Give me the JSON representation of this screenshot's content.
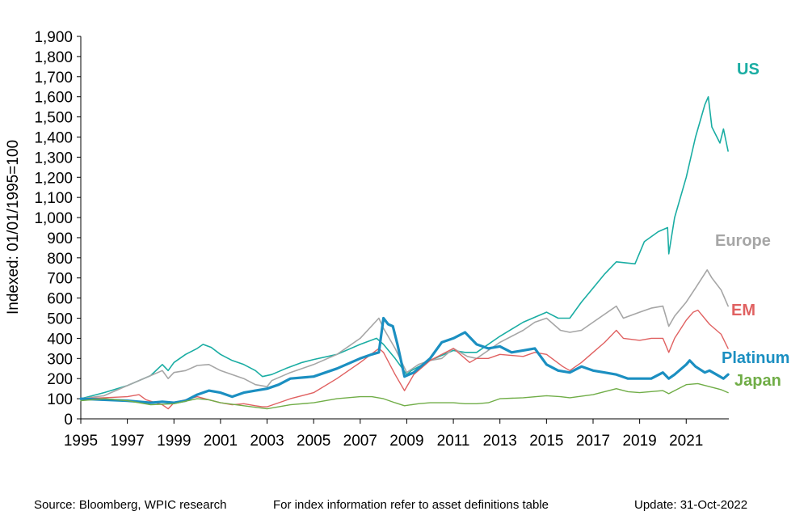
{
  "chart_data": {
    "type": "line",
    "title": "",
    "xlabel": "",
    "ylabel": "Indexed: 01/01/1995=100",
    "xlim": [
      1995,
      2022.83
    ],
    "ylim": [
      0,
      1900
    ],
    "x_ticks": [
      "1995",
      "1997",
      "1999",
      "2001",
      "2003",
      "2005",
      "2007",
      "2009",
      "2011",
      "2013",
      "2015",
      "2017",
      "2019",
      "2021"
    ],
    "y_ticks": [
      "0",
      "100",
      "200",
      "300",
      "400",
      "500",
      "600",
      "700",
      "800",
      "900",
      "1,000",
      "1,100",
      "1,200",
      "1,300",
      "1,400",
      "1,500",
      "1,600",
      "1,700",
      "1,800",
      "1,900"
    ],
    "grid": false,
    "legend": "direct labels at line ends",
    "series": [
      {
        "name": "US",
        "color": "#1aada3",
        "width": 1.6,
        "points": [
          [
            1995,
            100
          ],
          [
            1996,
            130
          ],
          [
            1997,
            165
          ],
          [
            1998,
            215
          ],
          [
            1998.5,
            270
          ],
          [
            1998.75,
            240
          ],
          [
            1999,
            280
          ],
          [
            1999.5,
            320
          ],
          [
            2000,
            350
          ],
          [
            2000.25,
            370
          ],
          [
            2000.6,
            355
          ],
          [
            2001,
            320
          ],
          [
            2001.5,
            290
          ],
          [
            2002,
            270
          ],
          [
            2002.5,
            240
          ],
          [
            2002.8,
            210
          ],
          [
            2003.2,
            220
          ],
          [
            2003.8,
            250
          ],
          [
            2004.5,
            280
          ],
          [
            2005,
            295
          ],
          [
            2006,
            320
          ],
          [
            2007,
            370
          ],
          [
            2007.7,
            400
          ],
          [
            2008,
            370
          ],
          [
            2008.5,
            300
          ],
          [
            2009,
            220
          ],
          [
            2009.2,
            240
          ],
          [
            2010,
            290
          ],
          [
            2011,
            340
          ],
          [
            2011.5,
            330
          ],
          [
            2012,
            330
          ],
          [
            2013,
            410
          ],
          [
            2014,
            480
          ],
          [
            2015,
            530
          ],
          [
            2015.5,
            500
          ],
          [
            2016,
            500
          ],
          [
            2016.5,
            580
          ],
          [
            2017,
            650
          ],
          [
            2017.5,
            720
          ],
          [
            2018,
            780
          ],
          [
            2018.8,
            770
          ],
          [
            2019.2,
            880
          ],
          [
            2019.8,
            930
          ],
          [
            2020.2,
            950
          ],
          [
            2020.25,
            820
          ],
          [
            2020.5,
            1000
          ],
          [
            2021,
            1200
          ],
          [
            2021.4,
            1400
          ],
          [
            2021.8,
            1560
          ],
          [
            2021.95,
            1600
          ],
          [
            2022.1,
            1450
          ],
          [
            2022.45,
            1370
          ],
          [
            2022.6,
            1440
          ],
          [
            2022.8,
            1330
          ]
        ]
      },
      {
        "name": "Europe",
        "color": "#a6a6a6",
        "width": 1.6,
        "points": [
          [
            1995,
            100
          ],
          [
            1996,
            115
          ],
          [
            1997,
            165
          ],
          [
            1998,
            215
          ],
          [
            1998.5,
            240
          ],
          [
            1998.75,
            200
          ],
          [
            1999,
            230
          ],
          [
            1999.5,
            240
          ],
          [
            2000,
            265
          ],
          [
            2000.5,
            270
          ],
          [
            2001,
            240
          ],
          [
            2001.5,
            220
          ],
          [
            2002,
            200
          ],
          [
            2002.5,
            170
          ],
          [
            2003,
            160
          ],
          [
            2003.2,
            190
          ],
          [
            2004,
            230
          ],
          [
            2005,
            270
          ],
          [
            2006,
            320
          ],
          [
            2007,
            400
          ],
          [
            2007.8,
            500
          ],
          [
            2008,
            450
          ],
          [
            2008.5,
            350
          ],
          [
            2009,
            230
          ],
          [
            2009.5,
            270
          ],
          [
            2010,
            290
          ],
          [
            2010.5,
            300
          ],
          [
            2011,
            350
          ],
          [
            2011.6,
            310
          ],
          [
            2012,
            300
          ],
          [
            2012.5,
            340
          ],
          [
            2013,
            380
          ],
          [
            2014,
            440
          ],
          [
            2014.5,
            480
          ],
          [
            2015,
            500
          ],
          [
            2015.6,
            440
          ],
          [
            2016,
            430
          ],
          [
            2016.5,
            440
          ],
          [
            2017,
            480
          ],
          [
            2018,
            560
          ],
          [
            2018.3,
            500
          ],
          [
            2019,
            530
          ],
          [
            2019.5,
            550
          ],
          [
            2020,
            560
          ],
          [
            2020.25,
            460
          ],
          [
            2020.5,
            510
          ],
          [
            2021,
            580
          ],
          [
            2021.4,
            650
          ],
          [
            2021.9,
            740
          ],
          [
            2022.1,
            700
          ],
          [
            2022.5,
            640
          ],
          [
            2022.8,
            560
          ]
        ]
      },
      {
        "name": "EM",
        "color": "#e06161",
        "width": 1.4,
        "points": [
          [
            1995,
            100
          ],
          [
            1996,
            105
          ],
          [
            1997,
            110
          ],
          [
            1997.5,
            120
          ],
          [
            1997.8,
            95
          ],
          [
            1998.5,
            70
          ],
          [
            1998.75,
            50
          ],
          [
            1999,
            80
          ],
          [
            1999.5,
            95
          ],
          [
            2000,
            110
          ],
          [
            2000.5,
            95
          ],
          [
            2001,
            80
          ],
          [
            2001.5,
            70
          ],
          [
            2002,
            75
          ],
          [
            2002.5,
            65
          ],
          [
            2002.8,
            60
          ],
          [
            2003,
            60
          ],
          [
            2004,
            100
          ],
          [
            2005,
            130
          ],
          [
            2006,
            200
          ],
          [
            2007,
            280
          ],
          [
            2007.8,
            350
          ],
          [
            2008,
            330
          ],
          [
            2008.5,
            220
          ],
          [
            2008.9,
            140
          ],
          [
            2009.3,
            220
          ],
          [
            2010,
            290
          ],
          [
            2011,
            350
          ],
          [
            2011.7,
            280
          ],
          [
            2012,
            300
          ],
          [
            2012.5,
            300
          ],
          [
            2013,
            320
          ],
          [
            2014,
            310
          ],
          [
            2014.5,
            330
          ],
          [
            2015,
            320
          ],
          [
            2015.7,
            260
          ],
          [
            2016,
            240
          ],
          [
            2016.5,
            280
          ],
          [
            2017,
            330
          ],
          [
            2017.5,
            380
          ],
          [
            2018,
            440
          ],
          [
            2018.3,
            400
          ],
          [
            2019,
            390
          ],
          [
            2019.5,
            400
          ],
          [
            2020,
            400
          ],
          [
            2020.25,
            330
          ],
          [
            2020.5,
            400
          ],
          [
            2021,
            490
          ],
          [
            2021.3,
            530
          ],
          [
            2021.5,
            540
          ],
          [
            2022,
            470
          ],
          [
            2022.5,
            420
          ],
          [
            2022.8,
            350
          ]
        ]
      },
      {
        "name": "Platinum",
        "color": "#1b8fc1",
        "width": 3.2,
        "points": [
          [
            1995,
            100
          ],
          [
            1996,
            95
          ],
          [
            1997,
            90
          ],
          [
            1997.5,
            85
          ],
          [
            1998,
            80
          ],
          [
            1998.5,
            85
          ],
          [
            1999,
            80
          ],
          [
            1999.5,
            90
          ],
          [
            2000,
            120
          ],
          [
            2000.5,
            140
          ],
          [
            2001,
            130
          ],
          [
            2001.5,
            110
          ],
          [
            2002,
            130
          ],
          [
            2002.5,
            140
          ],
          [
            2003,
            150
          ],
          [
            2003.5,
            170
          ],
          [
            2004,
            200
          ],
          [
            2005,
            210
          ],
          [
            2006,
            250
          ],
          [
            2007,
            300
          ],
          [
            2007.5,
            320
          ],
          [
            2007.8,
            330
          ],
          [
            2008,
            500
          ],
          [
            2008.2,
            470
          ],
          [
            2008.4,
            460
          ],
          [
            2008.6,
            370
          ],
          [
            2008.9,
            210
          ],
          [
            2009.3,
            230
          ],
          [
            2010,
            300
          ],
          [
            2010.5,
            380
          ],
          [
            2011,
            400
          ],
          [
            2011.5,
            430
          ],
          [
            2012,
            370
          ],
          [
            2012.5,
            350
          ],
          [
            2013,
            360
          ],
          [
            2013.5,
            330
          ],
          [
            2014,
            340
          ],
          [
            2014.5,
            350
          ],
          [
            2015,
            270
          ],
          [
            2015.5,
            240
          ],
          [
            2016,
            230
          ],
          [
            2016.5,
            260
          ],
          [
            2017,
            240
          ],
          [
            2017.5,
            230
          ],
          [
            2018,
            220
          ],
          [
            2018.5,
            200
          ],
          [
            2019,
            200
          ],
          [
            2019.5,
            200
          ],
          [
            2020,
            230
          ],
          [
            2020.25,
            200
          ],
          [
            2020.5,
            220
          ],
          [
            2021,
            270
          ],
          [
            2021.15,
            290
          ],
          [
            2021.4,
            260
          ],
          [
            2021.8,
            230
          ],
          [
            2022,
            240
          ],
          [
            2022.3,
            220
          ],
          [
            2022.6,
            200
          ],
          [
            2022.8,
            220
          ]
        ]
      },
      {
        "name": "Japan",
        "color": "#70ad47",
        "width": 1.4,
        "points": [
          [
            1995,
            90
          ],
          [
            1996,
            100
          ],
          [
            1997,
            90
          ],
          [
            1998,
            70
          ],
          [
            1999,
            75
          ],
          [
            2000,
            100
          ],
          [
            2000.5,
            95
          ],
          [
            2001,
            80
          ],
          [
            2002,
            65
          ],
          [
            2003,
            50
          ],
          [
            2003.5,
            60
          ],
          [
            2004,
            70
          ],
          [
            2005,
            80
          ],
          [
            2006,
            100
          ],
          [
            2007,
            110
          ],
          [
            2007.5,
            110
          ],
          [
            2008,
            100
          ],
          [
            2008.5,
            80
          ],
          [
            2008.9,
            65
          ],
          [
            2009.5,
            75
          ],
          [
            2010,
            80
          ],
          [
            2011,
            80
          ],
          [
            2011.5,
            75
          ],
          [
            2012,
            75
          ],
          [
            2012.5,
            80
          ],
          [
            2013,
            100
          ],
          [
            2014,
            105
          ],
          [
            2015,
            115
          ],
          [
            2015.6,
            110
          ],
          [
            2016,
            105
          ],
          [
            2017,
            120
          ],
          [
            2018,
            150
          ],
          [
            2018.5,
            135
          ],
          [
            2019,
            130
          ],
          [
            2020,
            140
          ],
          [
            2020.25,
            125
          ],
          [
            2020.5,
            140
          ],
          [
            2021,
            170
          ],
          [
            2021.5,
            175
          ],
          [
            2022,
            160
          ],
          [
            2022.5,
            145
          ],
          [
            2022.8,
            130
          ]
        ]
      }
    ]
  },
  "series_labels": {
    "us": "US",
    "europe": "Europe",
    "em": "EM",
    "platinum": "Platinum",
    "japan": "Japan"
  },
  "footer": {
    "source": "Source: Bloomberg, WPIC research",
    "note": "For index information refer to asset definitions table",
    "update": "Update: 31-Oct-2022"
  }
}
